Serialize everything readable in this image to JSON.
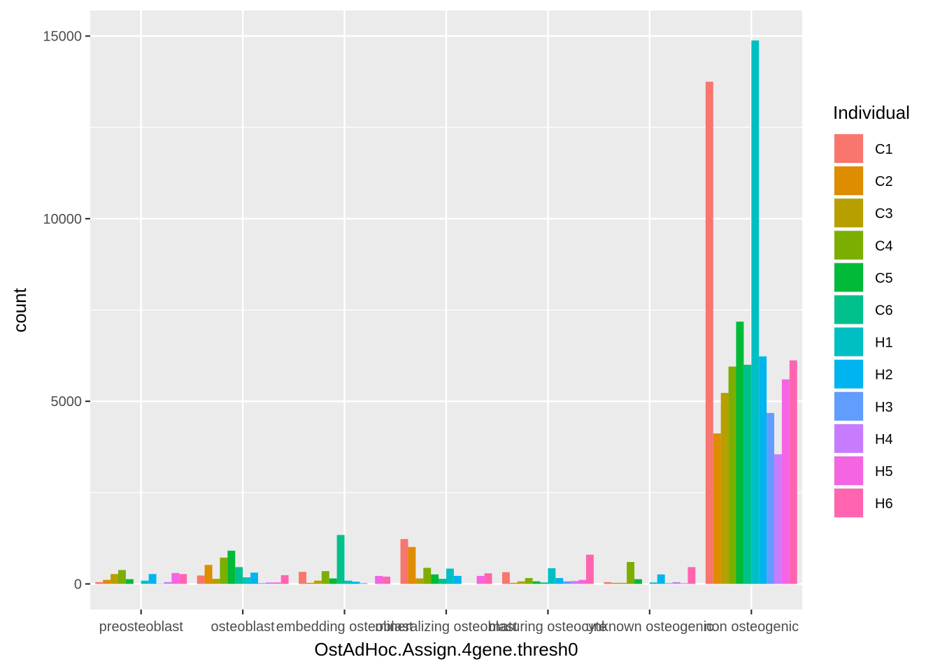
{
  "chart_data": {
    "type": "bar",
    "xlabel": "OstAdHoc.Assign.4gene.thresh0",
    "ylabel": "count",
    "ylim": [
      -700,
      15700
    ],
    "yticks": [
      0,
      5000,
      10000,
      15000
    ],
    "ytick_labels": [
      "0",
      "5000",
      "10000",
      "15000"
    ],
    "grid": true,
    "legend": {
      "title": "Individual",
      "position": "right"
    },
    "categories": [
      "preosteoblast",
      "osteoblast",
      "embedding osteoblast",
      "mineralizing osteoblast",
      "maturing osteocyte",
      "unknown osteogenic",
      "non osteogenic"
    ],
    "series": [
      {
        "name": "C1",
        "color": "#F8766D",
        "values": [
          50,
          230,
          330,
          1230,
          320,
          50,
          13750
        ]
      },
      {
        "name": "C2",
        "color": "#DE8C00",
        "values": [
          110,
          520,
          30,
          1010,
          30,
          30,
          4120
        ]
      },
      {
        "name": "C3",
        "color": "#B79F00",
        "values": [
          270,
          140,
          90,
          150,
          70,
          30,
          5230
        ]
      },
      {
        "name": "C4",
        "color": "#7CAE00",
        "values": [
          380,
          720,
          350,
          440,
          160,
          600,
          5950
        ]
      },
      {
        "name": "C5",
        "color": "#00BA38",
        "values": [
          130,
          910,
          150,
          260,
          70,
          130,
          7180
        ]
      },
      {
        "name": "C6",
        "color": "#00C08B",
        "values": [
          0,
          460,
          1340,
          140,
          40,
          0,
          6000
        ]
      },
      {
        "name": "H1",
        "color": "#00BFC4",
        "values": [
          90,
          180,
          90,
          420,
          430,
          40,
          14880
        ]
      },
      {
        "name": "H2",
        "color": "#00B4F0",
        "values": [
          270,
          310,
          60,
          220,
          160,
          260,
          6230
        ]
      },
      {
        "name": "H3",
        "color": "#619CFF",
        "values": [
          10,
          20,
          20,
          0,
          70,
          20,
          4680
        ]
      },
      {
        "name": "H4",
        "color": "#C77CFF",
        "values": [
          50,
          40,
          0,
          0,
          80,
          50,
          3550
        ]
      },
      {
        "name": "H5",
        "color": "#F564E3",
        "values": [
          300,
          40,
          220,
          220,
          110,
          20,
          5600
        ]
      },
      {
        "name": "H6",
        "color": "#FF64B0",
        "values": [
          270,
          240,
          200,
          290,
          800,
          460,
          6120
        ]
      }
    ]
  }
}
